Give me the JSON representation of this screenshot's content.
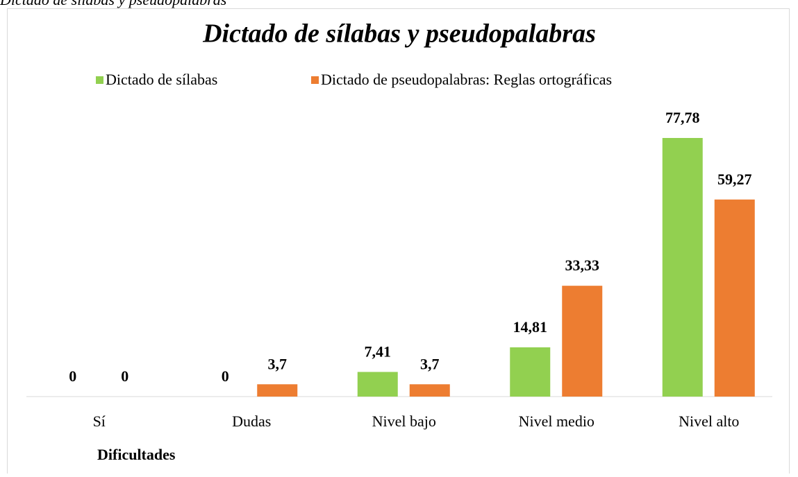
{
  "caption": "Dictado de sílabas y pseudopalabras",
  "chart_data": {
    "type": "bar",
    "title": "Dictado de sílabas y pseudopalabras",
    "categories": [
      "Sí",
      "Dudas",
      "Nivel bajo",
      "Nivel medio",
      "Nivel alto"
    ],
    "x_label": "Dificultades",
    "series": [
      {
        "name": "Dictado de sílabas",
        "color": "#92d050",
        "values": [
          0,
          0,
          7.41,
          14.81,
          77.78
        ],
        "value_labels": [
          "0",
          "0",
          "7,41",
          "14,81",
          "77,78"
        ]
      },
      {
        "name": "Dictado de pseudopalabras: Reglas ortográficas",
        "color": "#ed7d31",
        "values": [
          0,
          3.7,
          3.7,
          33.33,
          59.27
        ],
        "value_labels": [
          "0",
          "3,7",
          "3,7",
          "33,33",
          "59,27"
        ]
      }
    ]
  }
}
